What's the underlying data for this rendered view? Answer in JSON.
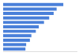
{
  "chart_data": {
    "type": "bar",
    "orientation": "horizontal",
    "categories": [
      null,
      null,
      null,
      null,
      null,
      null,
      null,
      null,
      null,
      null,
      null
    ],
    "values": [
      81,
      72,
      68,
      62,
      55,
      48,
      44,
      38,
      36,
      31,
      30
    ],
    "color": "#4a80d9",
    "xlim": [
      0,
      100
    ],
    "tick_labels": false,
    "grid": false
  }
}
